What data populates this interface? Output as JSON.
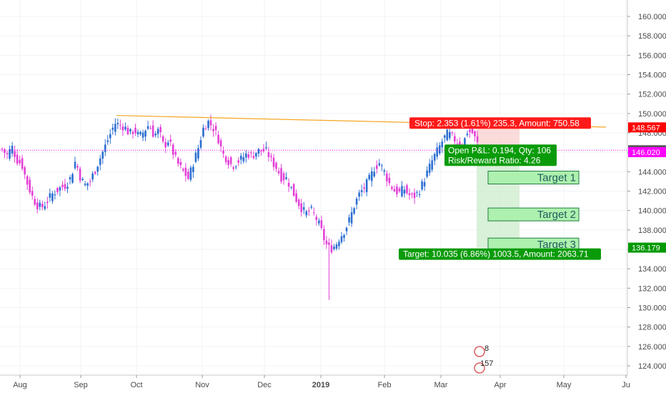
{
  "chart_data": {
    "type": "candlestick",
    "x_ticks": [
      "Aug",
      "Sep",
      "Oct",
      "Nov",
      "Dec",
      "2019",
      "Feb",
      "Mar",
      "Apr",
      "May",
      "Ju"
    ],
    "y_ticks": [
      "124.000",
      "126.000",
      "128.000",
      "130.000",
      "132.000",
      "134.000",
      "136.000",
      "138.000",
      "140.000",
      "142.000",
      "144.000",
      "146.000",
      "148.000",
      "150.000",
      "152.000",
      "154.000",
      "156.000",
      "158.000",
      "160.000"
    ],
    "ylim": [
      123,
      161.5
    ],
    "last_price": 146.214,
    "price_tags": [
      {
        "label": "148.567",
        "value": 148.567,
        "color": "#ff0000"
      },
      {
        "label": "146.214",
        "value": 146.214,
        "color": "#555555"
      },
      {
        "label": "146.020",
        "value": 146.02,
        "color": "#ff00ff"
      },
      {
        "label": "136.179",
        "value": 136.179,
        "color": "#009900"
      }
    ],
    "position": {
      "entry": 146.214,
      "stop": 148.567,
      "target": 136.179,
      "stop_label": "Stop: 2.353 (1.61%) 235.3, Amount: 750.58",
      "pnl_label": "Open P&L: 0.194, Qty: 106",
      "rr_label": "Risk/Reward Ratio: 4.26",
      "target_label": "Target: 10.035 (6.86%) 1003.5, Amount: 2063.71"
    },
    "targets": [
      {
        "label": "Target 1",
        "value": 143.4
      },
      {
        "label": "Target 2",
        "value": 139.6
      },
      {
        "label": "Target 3",
        "value": 136.5
      }
    ],
    "trendline": {
      "from": 149.8,
      "to": 148.6
    },
    "candle_path": [
      146.3,
      145.7,
      146.6,
      145.2,
      144.8,
      143.0,
      141.6,
      140.6,
      140.3,
      140.8,
      141.6,
      142.0,
      142.4,
      142.6,
      143.4,
      145.2,
      143.3,
      142.6,
      143.1,
      144.2,
      145.4,
      146.6,
      147.8,
      149.0,
      148.8,
      148.6,
      147.9,
      148.3,
      147.6,
      148.2,
      148.9,
      147.7,
      148.3,
      146.6,
      147.3,
      145.8,
      144.7,
      144.0,
      143.3,
      144.9,
      146.4,
      148.4,
      149.2,
      148.6,
      147.6,
      145.9,
      145.2,
      144.6,
      145.0,
      145.4,
      145.9,
      145.6,
      146.1,
      146.2,
      146.1,
      145.1,
      144.4,
      143.4,
      143.3,
      142.3,
      141.2,
      140.3,
      139.7,
      140.1,
      139.3,
      138.2,
      136.6,
      136.0,
      136.4,
      137.3,
      138.0,
      139.2,
      140.7,
      141.8,
      142.4,
      143.3,
      144.4,
      144.9,
      144.0,
      142.8,
      142.1,
      141.8,
      142.3,
      141.6,
      141.4,
      141.9,
      143.0,
      144.2,
      145.4,
      146.3,
      147.3,
      148.0,
      147.5,
      147.0,
      146.7,
      148.2,
      148.0,
      146.9
    ]
  },
  "watermark": {
    "badge_top": "8",
    "badge_bottom": "157"
  }
}
